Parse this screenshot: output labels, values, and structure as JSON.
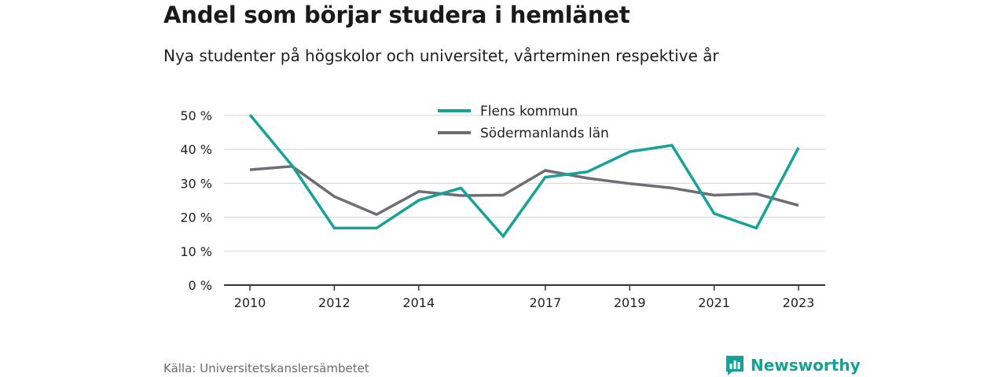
{
  "header": {
    "title": "Andel som börjar studera i hemlänet",
    "subtitle": "Nya studenter på högskolor och universitet, vårterminen respektive år"
  },
  "footer": {
    "source": "Källa: Universitetskanslersämbetet",
    "brand": "Newsworthy"
  },
  "colors": {
    "flens": "#14a396",
    "lan": "#6e6d73",
    "grid": "#d9d9d9",
    "axis": "#333333",
    "brand": "#12a396"
  },
  "chart_data": {
    "type": "line",
    "title": "Andel som börjar studera i hemlänet",
    "subtitle": "Nya studenter på högskolor och universitet, vårterminen respektive år",
    "x": [
      2010,
      2011,
      2012,
      2013,
      2014,
      2015,
      2016,
      2017,
      2018,
      2019,
      2020,
      2021,
      2022,
      2023
    ],
    "x_ticks": [
      "2010",
      "2012",
      "2014",
      "2017",
      "2019",
      "2021",
      "2023"
    ],
    "y_ticks": [
      "0 %",
      "10 %",
      "20 %",
      "30 %",
      "40 %",
      "50 %"
    ],
    "ylim": [
      0,
      50
    ],
    "y_unit": "%",
    "grid": true,
    "legend_position": "top-center",
    "series": [
      {
        "name": "Flens kommun",
        "color": "#14a396",
        "values": [
          50.2,
          35.2,
          16.8,
          16.8,
          25.0,
          28.6,
          14.4,
          31.8,
          33.4,
          39.3,
          41.2,
          21.1,
          16.8,
          40.5
        ]
      },
      {
        "name": "Södermanlands län",
        "color": "#6e6d73",
        "values": [
          34.0,
          35.0,
          26.1,
          20.8,
          27.6,
          26.4,
          26.5,
          33.8,
          31.5,
          29.9,
          28.6,
          26.5,
          26.9,
          23.5
        ]
      }
    ]
  }
}
